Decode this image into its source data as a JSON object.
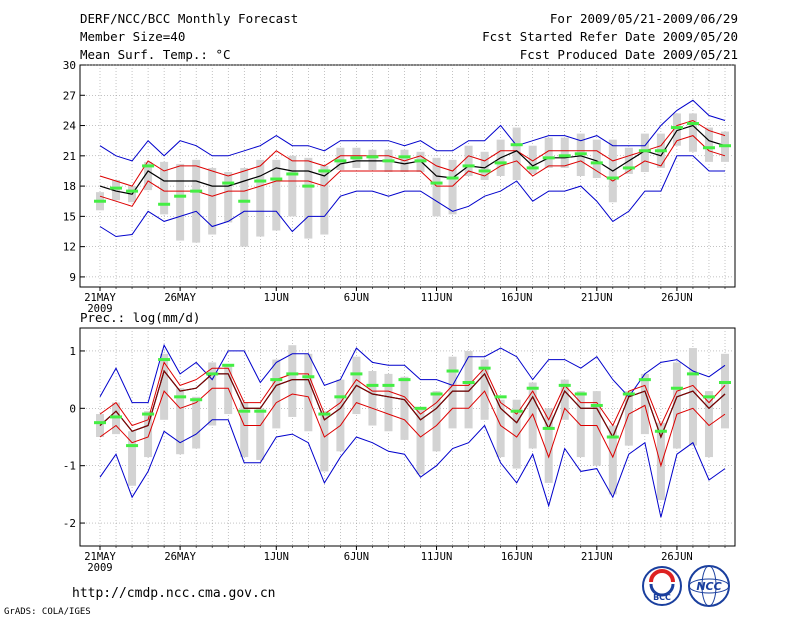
{
  "header": {
    "title": "DERF/NCC/BCC Monthly Forecast",
    "member_size": "Member Size=40",
    "variable": "Mean Surf. Temp.: °C",
    "period": "For 2009/05/21-2009/06/29",
    "started": "Fcst Started Refer Date 2009/05/20",
    "produced": "Fcst Produced Date 2009/05/21"
  },
  "footer": {
    "url": "http://cmdp.ncc.cma.gov.cn",
    "grads": "GrADS: COLA/IGES",
    "logo_bcc": "BCC",
    "logo_ncc": "NCC"
  },
  "colors": {
    "envelope": "#0000cc",
    "spread": "#dd0000",
    "mean": "#000000",
    "bar": "#d3d3d3",
    "obs": "#44ee44",
    "grid": "#888888"
  },
  "chart_data": [
    {
      "type": "line",
      "title": "Mean Surf. Temp.: °C",
      "x_day_offset_first": 0,
      "x_ticks": [
        {
          "day": 0,
          "label": "21MAY",
          "sub": "2009"
        },
        {
          "day": 5,
          "label": "26MAY"
        },
        {
          "day": 11,
          "label": "1JUN"
        },
        {
          "day": 16,
          "label": "6JUN"
        },
        {
          "day": 21,
          "label": "11JUN"
        },
        {
          "day": 26,
          "label": "16JUN"
        },
        {
          "day": 31,
          "label": "21JUN"
        },
        {
          "day": 36,
          "label": "26JUN"
        }
      ],
      "ylim": [
        8,
        30
      ],
      "y_ticks": [
        9,
        12,
        15,
        18,
        21,
        24,
        27,
        30
      ],
      "series": [
        {
          "name": "ensemble-max",
          "values": [
            22.0,
            21.0,
            20.5,
            22.5,
            21.0,
            22.5,
            22.0,
            21.0,
            21.0,
            21.5,
            22.0,
            23.0,
            22.0,
            22.0,
            21.5,
            22.5,
            22.5,
            22.5,
            22.5,
            22.0,
            22.5,
            21.5,
            21.5,
            22.5,
            22.5,
            24.0,
            22.0,
            22.5,
            23.0,
            23.0,
            22.5,
            23.0,
            22.0,
            22.0,
            22.0,
            24.0,
            25.5,
            26.5,
            25.0,
            24.5
          ]
        },
        {
          "name": "spread-upper",
          "values": [
            19.0,
            18.5,
            18.0,
            20.5,
            19.5,
            20.0,
            20.0,
            19.5,
            19.0,
            19.5,
            20.0,
            21.5,
            20.5,
            20.5,
            20.0,
            21.0,
            21.0,
            21.0,
            21.0,
            20.5,
            21.0,
            20.0,
            19.5,
            21.0,
            20.5,
            21.5,
            21.5,
            20.5,
            21.5,
            21.5,
            21.5,
            21.5,
            20.5,
            21.0,
            21.5,
            22.0,
            24.0,
            24.5,
            23.5,
            23.0
          ]
        },
        {
          "name": "ensemble-mean",
          "values": [
            18.0,
            17.5,
            17.2,
            19.5,
            18.5,
            18.5,
            18.5,
            18.0,
            18.0,
            18.5,
            19.0,
            19.8,
            19.5,
            19.5,
            19.0,
            20.2,
            20.5,
            20.5,
            20.5,
            20.2,
            20.5,
            19.0,
            18.8,
            20.0,
            19.8,
            20.8,
            21.5,
            20.0,
            20.8,
            20.8,
            21.0,
            20.5,
            19.5,
            20.5,
            21.5,
            21.0,
            23.5,
            24.0,
            22.5,
            22.0
          ]
        },
        {
          "name": "spread-lower",
          "values": [
            17.0,
            16.5,
            16.0,
            18.5,
            17.5,
            17.5,
            17.5,
            17.0,
            17.5,
            17.5,
            18.0,
            18.5,
            18.5,
            18.5,
            18.0,
            19.5,
            19.5,
            19.5,
            19.5,
            19.5,
            19.5,
            18.0,
            18.0,
            19.5,
            19.0,
            20.0,
            20.5,
            19.0,
            20.0,
            20.0,
            20.5,
            19.5,
            18.5,
            19.5,
            20.5,
            20.0,
            22.5,
            23.0,
            21.5,
            21.0
          ]
        },
        {
          "name": "ensemble-min",
          "values": [
            14.0,
            13.0,
            13.2,
            15.5,
            14.5,
            15.0,
            15.5,
            14.0,
            14.5,
            15.5,
            15.5,
            15.5,
            13.5,
            15.0,
            15.0,
            17.0,
            17.5,
            17.5,
            17.0,
            17.5,
            17.5,
            16.5,
            15.5,
            16.0,
            17.0,
            17.5,
            18.5,
            16.5,
            17.5,
            17.5,
            18.0,
            16.5,
            14.5,
            15.5,
            17.5,
            17.5,
            21.0,
            21.0,
            19.5,
            19.5
          ]
        }
      ],
      "bars": [
        [
          15.6,
          17.4
        ],
        [
          16.6,
          18.6
        ],
        [
          16.4,
          18.0
        ],
        [
          17.6,
          20.4
        ],
        [
          15.2,
          20.4
        ],
        [
          12.6,
          20.2
        ],
        [
          12.4,
          20.6
        ],
        [
          13.2,
          19.8
        ],
        [
          14.4,
          19.4
        ],
        [
          12.0,
          19.8
        ],
        [
          13.0,
          20.6
        ],
        [
          13.6,
          20.6
        ],
        [
          15.0,
          21.0
        ],
        [
          12.8,
          20.8
        ],
        [
          13.2,
          20.0
        ],
        [
          19.6,
          21.8
        ],
        [
          19.8,
          21.8
        ],
        [
          19.6,
          21.6
        ],
        [
          19.4,
          21.6
        ],
        [
          19.4,
          21.6
        ],
        [
          19.4,
          21.4
        ],
        [
          15.0,
          20.8
        ],
        [
          15.2,
          20.6
        ],
        [
          19.0,
          22.0
        ],
        [
          18.6,
          21.4
        ],
        [
          19.0,
          22.6
        ],
        [
          18.6,
          23.8
        ],
        [
          19.2,
          22.0
        ],
        [
          19.8,
          22.8
        ],
        [
          19.8,
          22.8
        ],
        [
          19.0,
          23.2
        ],
        [
          18.8,
          22.6
        ],
        [
          16.4,
          22.6
        ],
        [
          19.2,
          21.8
        ],
        [
          19.4,
          23.2
        ],
        [
          19.8,
          23.2
        ],
        [
          22.0,
          25.2
        ],
        [
          21.4,
          25.2
        ],
        [
          20.4,
          23.8
        ],
        [
          20.4,
          23.4
        ]
      ],
      "observed": [
        16.5,
        17.8,
        17.5,
        20.0,
        16.2,
        17.0,
        17.5,
        null,
        18.3,
        16.5,
        18.5,
        18.7,
        19.2,
        18.0,
        19.5,
        20.5,
        20.8,
        20.9,
        20.5,
        20.9,
        20.5,
        18.3,
        18.8,
        20.0,
        19.5,
        20.3,
        22.1,
        19.8,
        20.8,
        21.0,
        21.2,
        20.3,
        18.8,
        19.8,
        21.5,
        21.5,
        23.8,
        24.2,
        21.8,
        22.0
      ]
    },
    {
      "type": "line",
      "title": "Prec.: log(mm/d)",
      "x_ticks": [
        {
          "day": 0,
          "label": "21MAY",
          "sub": "2009"
        },
        {
          "day": 5,
          "label": "26MAY"
        },
        {
          "day": 11,
          "label": "1JUN"
        },
        {
          "day": 16,
          "label": "6JUN"
        },
        {
          "day": 21,
          "label": "11JUN"
        },
        {
          "day": 26,
          "label": "16JUN"
        },
        {
          "day": 31,
          "label": "21JUN"
        },
        {
          "day": 36,
          "label": "26JUN"
        }
      ],
      "ylim": [
        -2.4,
        1.4
      ],
      "y_ticks": [
        -2,
        -1,
        0,
        1
      ],
      "series": [
        {
          "name": "ensemble-max",
          "values": [
            0.2,
            0.7,
            0.1,
            0.1,
            1.1,
            0.6,
            0.8,
            0.5,
            1.0,
            1.0,
            0.45,
            0.8,
            0.95,
            0.95,
            0.4,
            0.5,
            1.05,
            0.8,
            0.75,
            0.75,
            0.5,
            0.5,
            0.4,
            0.9,
            0.9,
            1.05,
            0.9,
            0.5,
            0.85,
            0.85,
            0.7,
            0.9,
            0.5,
            0.2,
            0.6,
            0.8,
            0.85,
            0.65,
            0.55,
            0.75
          ]
        },
        {
          "name": "spread-upper",
          "values": [
            -0.1,
            0.1,
            -0.3,
            -0.2,
            0.8,
            0.4,
            0.5,
            0.7,
            0.7,
            0.1,
            0.1,
            0.5,
            0.6,
            0.6,
            -0.1,
            0.1,
            0.5,
            0.3,
            0.3,
            0.2,
            -0.1,
            0.1,
            0.4,
            0.4,
            0.7,
            0.1,
            -0.1,
            0.3,
            -0.2,
            0.4,
            0.1,
            0.1,
            -0.3,
            0.3,
            0.4,
            -0.3,
            0.3,
            0.4,
            0.1,
            0.4
          ]
        },
        {
          "name": "ensemble-mean",
          "values": [
            -0.3,
            -0.05,
            -0.4,
            -0.3,
            0.65,
            0.3,
            0.35,
            0.6,
            0.6,
            0.0,
            0.0,
            0.4,
            0.5,
            0.5,
            -0.2,
            0.0,
            0.4,
            0.25,
            0.2,
            0.15,
            -0.2,
            0.0,
            0.3,
            0.3,
            0.6,
            0.0,
            -0.25,
            0.2,
            -0.35,
            0.3,
            0.0,
            0.0,
            -0.5,
            0.2,
            0.3,
            -0.5,
            0.2,
            0.3,
            0.0,
            0.25
          ]
        },
        {
          "name": "spread-lower",
          "values": [
            -0.5,
            -0.3,
            -0.6,
            -0.5,
            0.3,
            0.0,
            0.1,
            0.35,
            0.35,
            -0.3,
            -0.3,
            0.1,
            0.25,
            0.2,
            -0.5,
            -0.3,
            0.1,
            0.0,
            -0.1,
            -0.2,
            -0.5,
            -0.3,
            0.0,
            0.0,
            0.3,
            -0.3,
            -0.5,
            -0.1,
            -0.85,
            0.0,
            -0.3,
            -0.3,
            -0.85,
            -0.1,
            0.05,
            -1.0,
            -0.1,
            0.0,
            -0.3,
            -0.1
          ]
        },
        {
          "name": "ensemble-min",
          "values": [
            -1.2,
            -0.8,
            -1.55,
            -1.1,
            -0.4,
            -0.6,
            -0.45,
            -0.2,
            -0.2,
            -0.95,
            -0.95,
            -0.5,
            -0.45,
            -0.6,
            -1.3,
            -0.85,
            -0.5,
            -0.6,
            -0.75,
            -0.8,
            -1.2,
            -1.0,
            -0.7,
            -0.6,
            -0.3,
            -0.95,
            -1.3,
            -0.8,
            -1.7,
            -0.7,
            -1.1,
            -1.05,
            -1.55,
            -0.8,
            -0.6,
            -1.9,
            -0.8,
            -0.6,
            -1.25,
            -1.05
          ]
        },
        {
          "name": "mean-dark-red",
          "values": [
            -0.3,
            -0.05,
            -0.4,
            -0.3,
            0.65,
            0.3,
            0.35,
            0.6,
            0.6,
            0.0,
            0.0,
            0.4,
            0.5,
            0.5,
            -0.2,
            0.0,
            0.4,
            0.25,
            0.2,
            0.15,
            -0.2,
            0.0,
            0.3,
            0.3,
            0.6,
            0.0,
            -0.25,
            0.2,
            -0.35,
            0.3,
            0.0,
            0.0,
            -0.5,
            0.2,
            0.3,
            -0.5,
            0.2,
            0.3,
            0.0,
            0.25
          ]
        }
      ],
      "bars": [
        [
          -0.5,
          -0.1
        ],
        [
          -0.45,
          0.1
        ],
        [
          -1.35,
          -0.4
        ],
        [
          -0.85,
          -0.05
        ],
        [
          -0.2,
          0.95
        ],
        [
          -0.8,
          0.35
        ],
        [
          -0.7,
          0.2
        ],
        [
          -0.3,
          0.8
        ],
        [
          -0.1,
          0.75
        ],
        [
          -0.85,
          0.1
        ],
        [
          -0.9,
          0.0
        ],
        [
          -0.35,
          0.85
        ],
        [
          -0.15,
          1.1
        ],
        [
          -0.4,
          0.95
        ],
        [
          -1.1,
          -0.05
        ],
        [
          -0.75,
          0.5
        ],
        [
          -0.1,
          0.9
        ],
        [
          -0.3,
          0.65
        ],
        [
          -0.4,
          0.6
        ],
        [
          -0.55,
          0.55
        ],
        [
          -1.15,
          0.0
        ],
        [
          -0.75,
          0.3
        ],
        [
          -0.35,
          0.9
        ],
        [
          -0.35,
          1.0
        ],
        [
          -0.2,
          0.85
        ],
        [
          -0.85,
          0.15
        ],
        [
          -1.05,
          0.15
        ],
        [
          -0.7,
          0.45
        ],
        [
          -1.3,
          0.0
        ],
        [
          -0.2,
          0.5
        ],
        [
          -0.85,
          0.3
        ],
        [
          -1.0,
          0.3
        ],
        [
          -1.5,
          -0.3
        ],
        [
          -0.65,
          0.3
        ],
        [
          -0.45,
          0.6
        ],
        [
          -1.6,
          -0.25
        ],
        [
          -0.7,
          0.8
        ],
        [
          -0.65,
          1.05
        ],
        [
          -0.85,
          0.3
        ],
        [
          -0.35,
          0.95
        ]
      ],
      "observed": [
        -0.25,
        -0.15,
        -0.65,
        -0.1,
        0.85,
        0.2,
        0.15,
        0.6,
        0.75,
        -0.05,
        -0.05,
        0.5,
        0.6,
        0.55,
        -0.1,
        0.2,
        0.6,
        0.4,
        0.4,
        0.5,
        0.0,
        0.25,
        0.65,
        0.45,
        0.7,
        0.2,
        -0.05,
        0.35,
        -0.35,
        0.4,
        0.25,
        0.05,
        -0.5,
        0.25,
        0.5,
        -0.4,
        0.35,
        0.6,
        0.2,
        0.45
      ]
    }
  ]
}
